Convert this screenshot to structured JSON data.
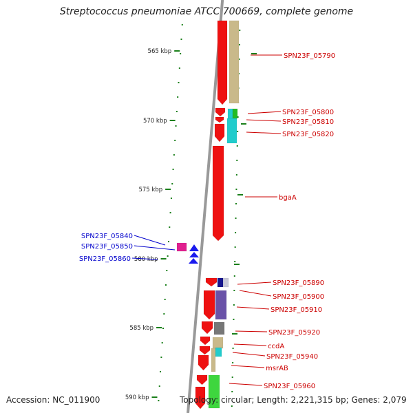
{
  "title": "Streptococcus pneumoniae ATCC 700669, complete genome",
  "footer": {
    "accession": "Accession: NC_011900",
    "summary": "Topology: circular; Length: 2,221,315 bp; Genes: 2,079"
  },
  "ruler": [
    "565 kbp",
    "570 kbp",
    "575 kbp",
    "580 kbp",
    "585 kbp",
    "590 kbp"
  ],
  "colors": {
    "backbone": "#999999",
    "forward_gene": "#ee1111",
    "label_right": "#cc0000",
    "label_left": "#0000cc",
    "tick": "#1a7f1a"
  },
  "genes_right": [
    "SPN23F_05790",
    "SPN23F_05800",
    "SPN23F_05810",
    "SPN23F_05820",
    "bgaA",
    "SPN23F_05890",
    "SPN23F_05900",
    "SPN23F_05910",
    "SPN23F_05920",
    "ccdA",
    "SPN23F_05940",
    "msrAB",
    "SPN23F_05960"
  ],
  "genes_left": [
    "SPN23F_05840",
    "SPN23F_05850",
    "SPN23F_05860"
  ]
}
